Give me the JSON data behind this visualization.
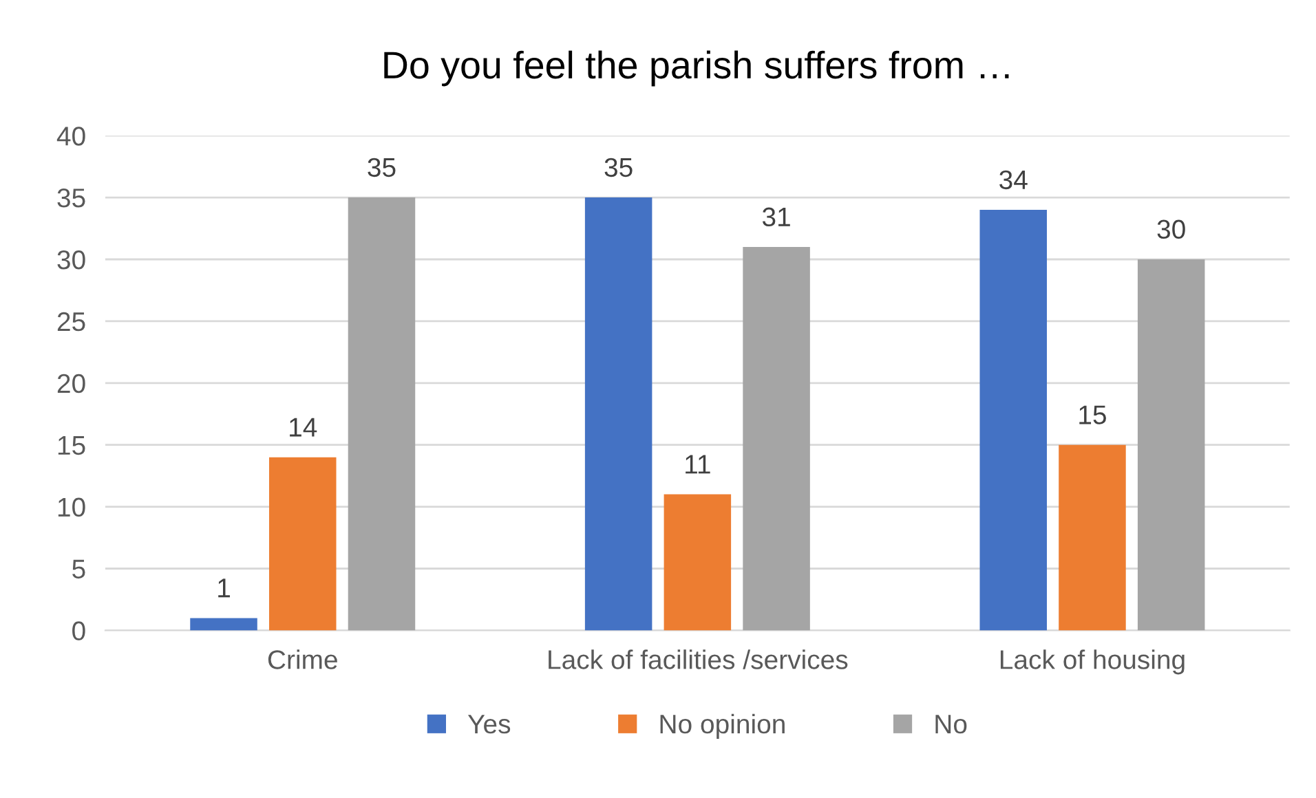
{
  "chart_data": {
    "type": "bar",
    "title": "Do you feel the parish suffers from …",
    "categories": [
      "Crime",
      "Lack of facilities /services",
      "Lack of housing"
    ],
    "series": [
      {
        "name": "Yes",
        "color": "#4472c4",
        "values": [
          1,
          35,
          34
        ]
      },
      {
        "name": "No opinion",
        "color": "#ed7d31",
        "values": [
          14,
          11,
          15
        ]
      },
      {
        "name": "No",
        "color": "#a5a5a5",
        "values": [
          35,
          31,
          30
        ]
      }
    ],
    "ylim": [
      0,
      40
    ],
    "yticks": [
      0,
      5,
      10,
      15,
      20,
      25,
      30,
      35,
      40
    ],
    "grid": "y",
    "legend": "bottom",
    "data_labels": true
  }
}
